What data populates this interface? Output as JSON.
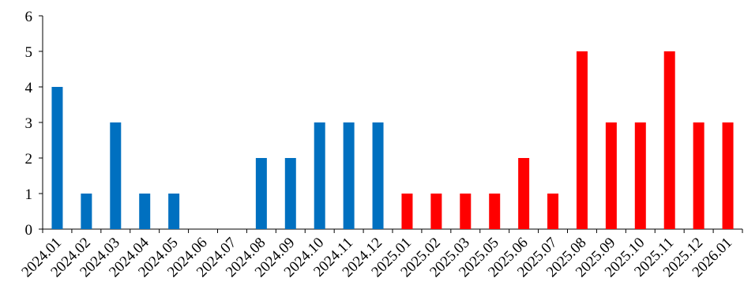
{
  "chart_data": {
    "type": "bar",
    "title": "",
    "xlabel": "",
    "ylabel": "",
    "ylim": [
      0,
      6
    ],
    "yticks": [
      "0",
      "1",
      "2",
      "3",
      "4",
      "5",
      "6"
    ],
    "grid": false,
    "legend": "none",
    "categories": [
      "2024.01",
      "2024.02",
      "2024.03",
      "2024.04",
      "2024.05",
      "2024.06",
      "2024.07",
      "2024.08",
      "2024.09",
      "2024.10",
      "2024.11",
      "2024.12",
      "2025.01",
      "2025.02",
      "2025.03",
      "2025.05",
      "2025.06",
      "2025.07",
      "2025.08",
      "2025.09",
      "2025.10",
      "2025.11",
      "2025.12",
      "2026.01"
    ],
    "values": [
      4,
      1,
      3,
      1,
      1,
      0,
      0,
      2,
      2,
      3,
      3,
      3,
      1,
      1,
      1,
      1,
      2,
      1,
      5,
      3,
      3,
      5,
      3,
      3
    ],
    "colors": {
      "2024": "#0070C0",
      "2025_onward": "#FF0000",
      "axis": "#000000"
    }
  }
}
